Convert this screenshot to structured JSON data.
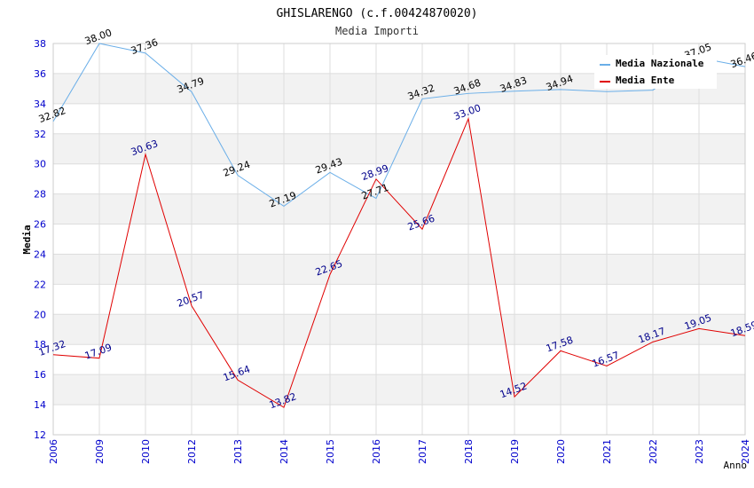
{
  "chart_data": {
    "type": "line",
    "title": "GHISLARENGO (c.f.00424870020)",
    "subtitle": "Media Importi",
    "xlabel": "Anno",
    "ylabel": "Media",
    "ylim": [
      12,
      38
    ],
    "yticks": [
      12,
      14,
      16,
      18,
      20,
      22,
      24,
      26,
      28,
      30,
      32,
      34,
      36,
      38
    ],
    "categories": [
      "2006",
      "2009",
      "2010",
      "2012",
      "2013",
      "2014",
      "2015",
      "2016",
      "2017",
      "2018",
      "2019",
      "2020",
      "2021",
      "2022",
      "2023",
      "2024"
    ],
    "legend_position": "top-right",
    "series": [
      {
        "name": "Media Nazionale",
        "color": "#6aaee8",
        "label_color": "#000000",
        "values": [
          32.82,
          38.0,
          37.36,
          34.79,
          29.24,
          27.19,
          29.43,
          27.71,
          34.32,
          34.68,
          34.83,
          34.94,
          34.8,
          34.9,
          37.05,
          36.46
        ],
        "labels": [
          "32.82",
          "38.00",
          "37.36",
          "34.79",
          "29.24",
          "27.19",
          "29.43",
          "27.71",
          "34.32",
          "34.68",
          "34.83",
          "34.94",
          "",
          "",
          "37.05",
          "36.46"
        ]
      },
      {
        "name": "Media Ente",
        "color": "#e00000",
        "label_color": "#00008b",
        "values": [
          17.32,
          17.09,
          30.63,
          20.57,
          15.64,
          13.82,
          22.65,
          28.99,
          25.66,
          33.0,
          14.52,
          17.58,
          16.57,
          18.17,
          19.05,
          18.59
        ],
        "labels": [
          "17.32",
          "17.09",
          "30.63",
          "20.57",
          "15.64",
          "13.82",
          "22.65",
          "28.99",
          "25.66",
          "33.00",
          "14.52",
          "17.58",
          "16.57",
          "18.17",
          "19.05",
          "18.59"
        ]
      }
    ]
  }
}
